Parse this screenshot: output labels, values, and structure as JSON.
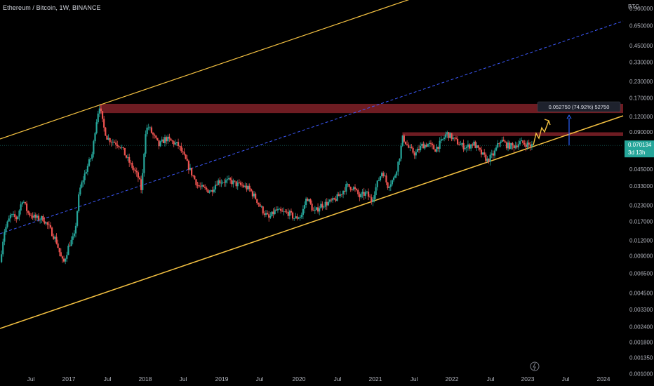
{
  "header": {
    "title": "Ethereum / Bitcoin, 1W, BINANCE"
  },
  "colors": {
    "background": "#000000",
    "up": "#26a69a",
    "down": "#ef5350",
    "channel": "#f5c242",
    "midline": "#3d5afe",
    "resistance_zone": "#7a1f26",
    "price_badge": "#26a69a",
    "measure_arrow": "#2962ff"
  },
  "chart_data": {
    "type": "candlestick",
    "ylabel": "BTC",
    "yscale": "log",
    "ylim": [
      0.00085,
      1.05
    ],
    "y_ticks": [
      "0.900000",
      "0.650000",
      "0.450000",
      "0.330000",
      "0.230000",
      "0.170000",
      "0.120000",
      "0.090000",
      "0.045000",
      "0.033000",
      "0.023000",
      "0.017000",
      "0.012000",
      "0.009000",
      "0.006500",
      "0.004500",
      "0.003300",
      "0.002400",
      "0.001800",
      "0.001350",
      "0.001000"
    ],
    "x_ticks": [
      "Jul",
      "2017",
      "Jul",
      "2018",
      "Jul",
      "2019",
      "Jul",
      "2020",
      "Jul",
      "2021",
      "Jul",
      "2022",
      "Jul",
      "2023",
      "Jul",
      "2024"
    ],
    "xlim": [
      "2016-03-01",
      "2024-03-15"
    ],
    "current_price": "0.070134",
    "countdown": "3d 13h",
    "measure_label": "0.052750 (74.92%) 52750",
    "measure_from": 0.070134,
    "measure_to": 0.122884,
    "weekly_close_path": [
      [
        "2016-03-01",
        0.008
      ],
      [
        "2016-03-20",
        0.014
      ],
      [
        "2016-04-20",
        0.019
      ],
      [
        "2016-05-20",
        0.018
      ],
      [
        "2016-06-15",
        0.026
      ],
      [
        "2016-07-10",
        0.02
      ],
      [
        "2016-08-20",
        0.018
      ],
      [
        "2016-09-20",
        0.018
      ],
      [
        "2016-10-20",
        0.015
      ],
      [
        "2016-11-20",
        0.012
      ],
      [
        "2016-12-15",
        0.0085
      ],
      [
        "2016-12-25",
        0.0078
      ],
      [
        "2017-01-20",
        0.011
      ],
      [
        "2017-02-15",
        0.013
      ],
      [
        "2017-03-10",
        0.03
      ],
      [
        "2017-04-10",
        0.044
      ],
      [
        "2017-05-10",
        0.06
      ],
      [
        "2017-05-25",
        0.1
      ],
      [
        "2017-06-12",
        0.15
      ],
      [
        "2017-07-01",
        0.1
      ],
      [
        "2017-07-20",
        0.08
      ],
      [
        "2017-08-20",
        0.075
      ],
      [
        "2017-09-20",
        0.07
      ],
      [
        "2017-10-20",
        0.055
      ],
      [
        "2017-11-20",
        0.045
      ],
      [
        "2017-12-15",
        0.038
      ],
      [
        "2017-12-28",
        0.03
      ],
      [
        "2018-01-15",
        0.09
      ],
      [
        "2018-01-28",
        0.1
      ],
      [
        "2018-02-20",
        0.085
      ],
      [
        "2018-03-20",
        0.07
      ],
      [
        "2018-04-20",
        0.08
      ],
      [
        "2018-05-20",
        0.075
      ],
      [
        "2018-06-20",
        0.07
      ],
      [
        "2018-07-20",
        0.055
      ],
      [
        "2018-08-20",
        0.042
      ],
      [
        "2018-09-20",
        0.033
      ],
      [
        "2018-10-20",
        0.031
      ],
      [
        "2018-11-20",
        0.03
      ],
      [
        "2018-12-20",
        0.036
      ],
      [
        "2019-01-20",
        0.036
      ],
      [
        "2019-02-20",
        0.036
      ],
      [
        "2019-03-20",
        0.034
      ],
      [
        "2019-04-20",
        0.033
      ],
      [
        "2019-05-20",
        0.031
      ],
      [
        "2019-06-20",
        0.026
      ],
      [
        "2019-07-20",
        0.021
      ],
      [
        "2019-08-20",
        0.018
      ],
      [
        "2019-09-20",
        0.021
      ],
      [
        "2019-10-20",
        0.02
      ],
      [
        "2019-11-20",
        0.02
      ],
      [
        "2019-12-20",
        0.018
      ],
      [
        "2020-01-20",
        0.019
      ],
      [
        "2020-02-15",
        0.027
      ],
      [
        "2020-03-20",
        0.02
      ],
      [
        "2020-04-20",
        0.023
      ],
      [
        "2020-05-20",
        0.024
      ],
      [
        "2020-06-20",
        0.025
      ],
      [
        "2020-07-20",
        0.028
      ],
      [
        "2020-08-20",
        0.033
      ],
      [
        "2020-09-20",
        0.032
      ],
      [
        "2020-10-20",
        0.027
      ],
      [
        "2020-11-20",
        0.029
      ],
      [
        "2020-12-15",
        0.025
      ],
      [
        "2021-01-10",
        0.034
      ],
      [
        "2021-02-05",
        0.044
      ],
      [
        "2021-03-01",
        0.033
      ],
      [
        "2021-04-01",
        0.038
      ],
      [
        "2021-04-25",
        0.055
      ],
      [
        "2021-05-12",
        0.082
      ],
      [
        "2021-06-10",
        0.066
      ],
      [
        "2021-07-10",
        0.06
      ],
      [
        "2021-08-10",
        0.07
      ],
      [
        "2021-09-10",
        0.072
      ],
      [
        "2021-10-10",
        0.065
      ],
      [
        "2021-11-10",
        0.075
      ],
      [
        "2021-12-05",
        0.088
      ],
      [
        "2022-01-10",
        0.078
      ],
      [
        "2022-02-10",
        0.07
      ],
      [
        "2022-03-10",
        0.068
      ],
      [
        "2022-04-10",
        0.073
      ],
      [
        "2022-05-10",
        0.062
      ],
      [
        "2022-06-15",
        0.053
      ],
      [
        "2022-07-15",
        0.06
      ],
      [
        "2022-08-15",
        0.078
      ],
      [
        "2022-09-15",
        0.07
      ],
      [
        "2022-10-15",
        0.069
      ],
      [
        "2022-11-15",
        0.074
      ],
      [
        "2022-12-15",
        0.072
      ],
      [
        "2023-01-05",
        0.07
      ],
      [
        "2023-01-12",
        0.070134
      ]
    ]
  }
}
